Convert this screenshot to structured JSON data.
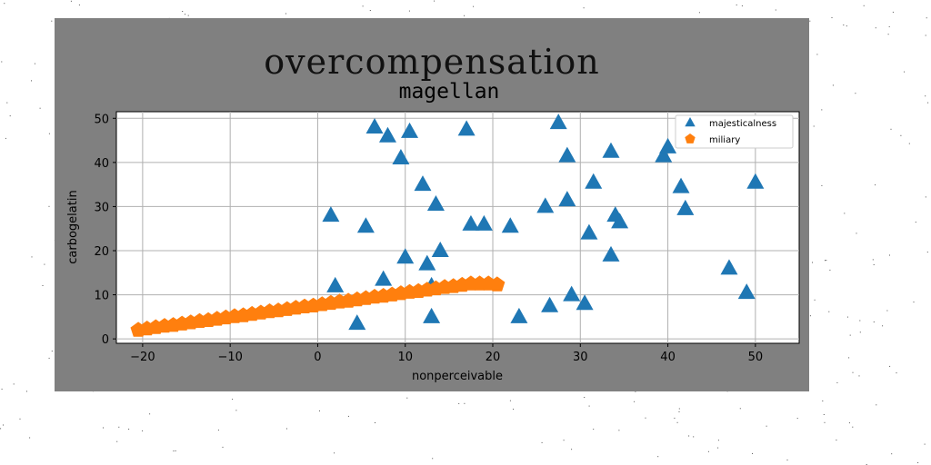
{
  "chart_data": {
    "type": "scatter",
    "suptitle": "overcompensation",
    "title": "magellan",
    "xlabel": "nonperceivable",
    "ylabel": "carbogelatin",
    "xlim": [
      -23,
      55
    ],
    "ylim": [
      -1,
      51.5
    ],
    "xticks": [
      -20,
      -10,
      0,
      10,
      20,
      30,
      40,
      50
    ],
    "yticks": [
      0,
      10,
      20,
      30,
      40,
      50
    ],
    "grid": true,
    "legend_position": "top-right",
    "series": [
      {
        "name": "majesticalness",
        "marker": "triangle",
        "color": "#1f77b4",
        "points": [
          [
            6.5,
            48
          ],
          [
            8,
            46
          ],
          [
            10.5,
            47
          ],
          [
            9.5,
            41
          ],
          [
            12,
            35
          ],
          [
            13.5,
            30.5
          ],
          [
            1.5,
            28
          ],
          [
            5.5,
            25.5
          ],
          [
            2,
            12
          ],
          [
            4.5,
            3.5
          ],
          [
            7.5,
            13.5
          ],
          [
            10,
            18.5
          ],
          [
            12.5,
            17
          ],
          [
            14,
            20
          ],
          [
            13,
            12
          ],
          [
            13,
            5
          ],
          [
            17,
            47.5
          ],
          [
            17.5,
            26
          ],
          [
            19,
            26
          ],
          [
            22,
            25.5
          ],
          [
            23,
            5
          ],
          [
            26,
            30
          ],
          [
            26.5,
            7.5
          ],
          [
            27.5,
            49
          ],
          [
            28.5,
            41.5
          ],
          [
            28.5,
            31.5
          ],
          [
            29,
            10
          ],
          [
            30.5,
            8
          ],
          [
            31,
            24
          ],
          [
            31.5,
            35.5
          ],
          [
            33.5,
            42.5
          ],
          [
            33.5,
            19
          ],
          [
            34,
            28
          ],
          [
            34.5,
            26.5
          ],
          [
            39.5,
            41.5
          ],
          [
            40,
            43.5
          ],
          [
            41.5,
            34.5
          ],
          [
            42,
            29.5
          ],
          [
            47,
            16
          ],
          [
            47.5,
            46
          ],
          [
            49,
            10.5
          ],
          [
            49,
            45.5
          ],
          [
            50,
            35.5
          ],
          [
            51,
            48
          ]
        ]
      },
      {
        "name": "miliary",
        "marker": "pentagon",
        "color": "#ff7f0e",
        "points": [
          [
            -20.5,
            2
          ],
          [
            -19.5,
            2.3
          ],
          [
            -18.5,
            2.6
          ],
          [
            -17.5,
            2.9
          ],
          [
            -16.5,
            3.1
          ],
          [
            -15.5,
            3.4
          ],
          [
            -14.5,
            3.7
          ],
          [
            -13.5,
            4
          ],
          [
            -12.5,
            4.2
          ],
          [
            -11.5,
            4.5
          ],
          [
            -10.5,
            4.8
          ],
          [
            -9.5,
            5.1
          ],
          [
            -8.5,
            5.3
          ],
          [
            -7.5,
            5.6
          ],
          [
            -6.5,
            5.9
          ],
          [
            -5.5,
            6.2
          ],
          [
            -4.5,
            6.4
          ],
          [
            -3.5,
            6.7
          ],
          [
            -2.5,
            7
          ],
          [
            -1.5,
            7.3
          ],
          [
            -0.5,
            7.5
          ],
          [
            0.5,
            7.8
          ],
          [
            1.5,
            8.1
          ],
          [
            2.5,
            8.4
          ],
          [
            3.5,
            8.6
          ],
          [
            4.5,
            8.9
          ],
          [
            5.5,
            9.2
          ],
          [
            6.5,
            9.5
          ],
          [
            7.5,
            9.7
          ],
          [
            8.5,
            10
          ],
          [
            9.5,
            10.3
          ],
          [
            10.5,
            10.6
          ],
          [
            11.5,
            10.8
          ],
          [
            12.5,
            11.1
          ],
          [
            13.5,
            11.4
          ],
          [
            14.5,
            11.7
          ],
          [
            15.5,
            11.9
          ],
          [
            16.5,
            12.2
          ],
          [
            17.5,
            12.5
          ],
          [
            18.5,
            12.5
          ],
          [
            19.5,
            12.5
          ],
          [
            20.5,
            12.3
          ]
        ]
      }
    ]
  }
}
